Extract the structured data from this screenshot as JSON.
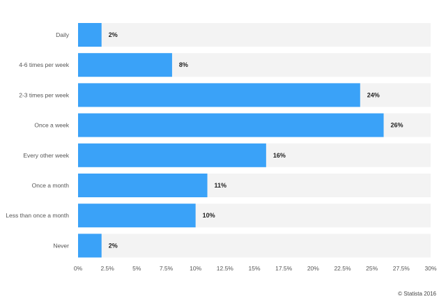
{
  "chart_data": {
    "type": "bar",
    "orientation": "horizontal",
    "categories": [
      "Daily",
      "4-6 times per week",
      "2-3 times per week",
      "Once a week",
      "Every other week",
      "Once a month",
      "Less than once a month",
      "Never"
    ],
    "values": [
      2,
      8,
      24,
      26,
      16,
      11,
      10,
      2
    ],
    "value_labels": [
      "2%",
      "8%",
      "24%",
      "26%",
      "16%",
      "11%",
      "10%",
      "2%"
    ],
    "xlim": [
      0,
      30
    ],
    "xticks": [
      0,
      2.5,
      5,
      7.5,
      10,
      12.5,
      15,
      17.5,
      20,
      22.5,
      25,
      27.5,
      30
    ],
    "xtick_labels": [
      "0%",
      "2.5%",
      "5%",
      "7.5%",
      "10%",
      "12.5%",
      "15%",
      "17.5%",
      "20%",
      "22.5%",
      "25%",
      "27.5%",
      "30%"
    ],
    "grid": false,
    "colors": {
      "bar": "#3aa2f8",
      "track": "#f3f3f3"
    }
  },
  "credit": "© Statista 2016"
}
